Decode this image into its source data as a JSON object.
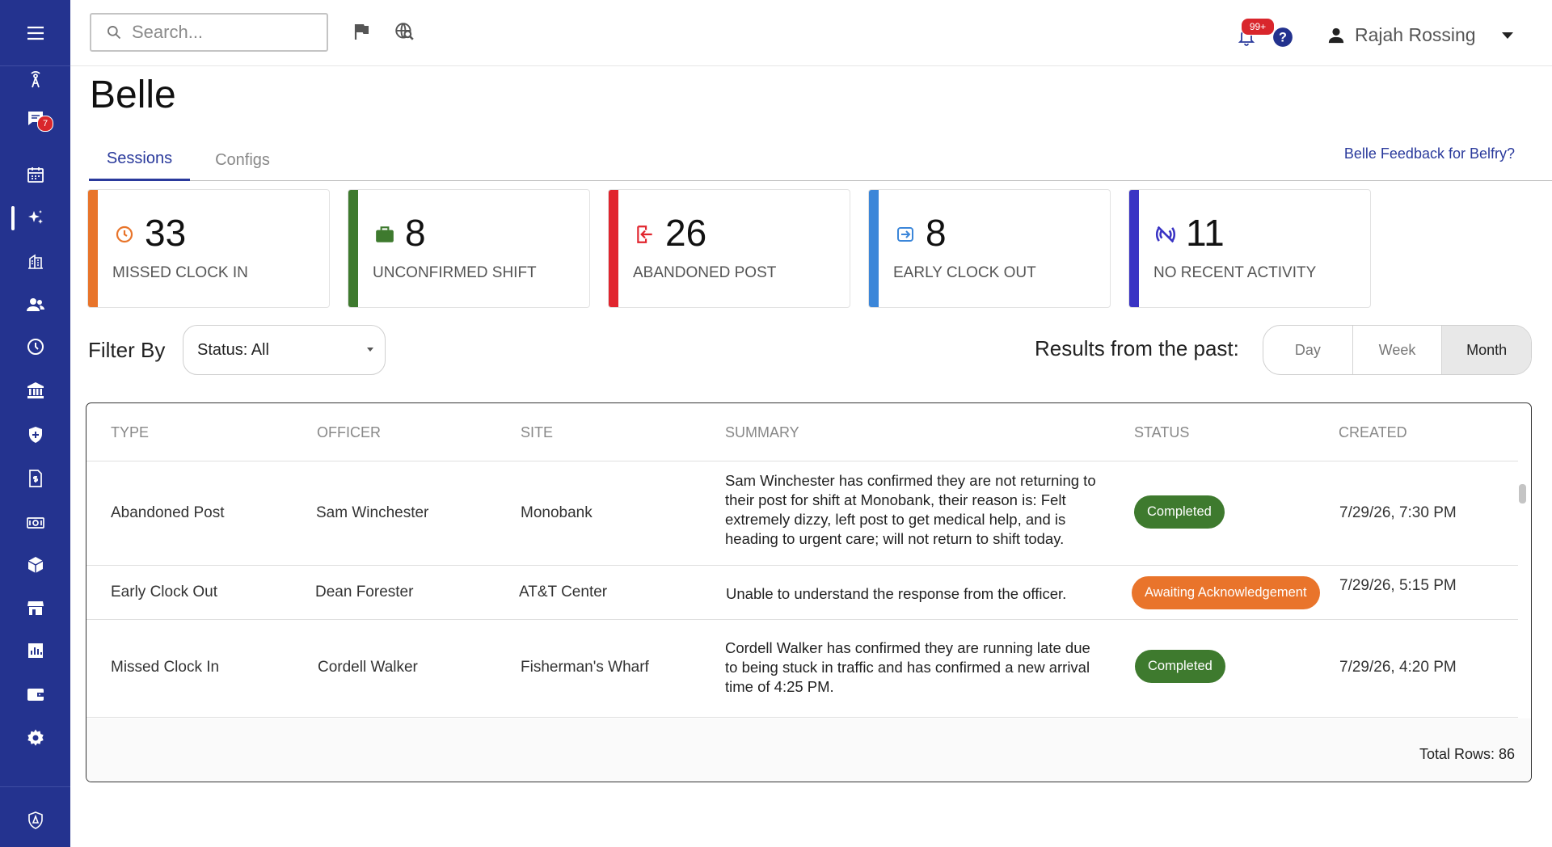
{
  "topbar": {
    "search_placeholder": "Search...",
    "notification_count": "99+",
    "user_name": "Rajah Rossing"
  },
  "sidebar": {
    "messages_badge": "7"
  },
  "page": {
    "title": "Belle",
    "tabs": [
      "Sessions",
      "Configs"
    ],
    "active_tab": "Sessions",
    "feedback_link": "Belle Feedback for Belfry?"
  },
  "cards": [
    {
      "value": "33",
      "label": "MISSED CLOCK IN",
      "color": "#e8742a"
    },
    {
      "value": "8",
      "label": "UNCONFIRMED SHIFT",
      "color": "#3e7a2e"
    },
    {
      "value": "26",
      "label": "ABANDONED POST",
      "color": "#e1252e"
    },
    {
      "value": "8",
      "label": "EARLY CLOCK OUT",
      "color": "#3b86d9"
    },
    {
      "value": "11",
      "label": "NO RECENT ACTIVITY",
      "color": "#3a34c4"
    }
  ],
  "filter": {
    "label": "Filter By",
    "status_value": "Status: All",
    "results_label": "Results from the past:",
    "ranges": [
      "Day",
      "Week",
      "Month"
    ],
    "selected_range": "Month"
  },
  "table": {
    "headers": [
      "TYPE",
      "OFFICER",
      "SITE",
      "SUMMARY",
      "STATUS",
      "CREATED"
    ],
    "rows": [
      {
        "type": "Abandoned Post",
        "officer": "Sam Winchester",
        "site": "Monobank",
        "summary": "Sam Winchester has confirmed they are not returning to their post for shift at Monobank, their reason is: Felt extremely dizzy, left post to get medical help, and is heading to urgent care; will not return to shift today.",
        "status": "Completed",
        "created": "7/29/26, 7:30 PM"
      },
      {
        "type": "Early Clock Out",
        "officer": "Dean Forester",
        "site": "AT&T Center",
        "summary": "Unable to understand the response from the officer.",
        "status": "Awaiting Acknowledgement",
        "created": "7/29/26, 5:15 PM"
      },
      {
        "type": "Missed Clock In",
        "officer": "Cordell Walker",
        "site": "Fisherman's Wharf",
        "summary": "Cordell Walker has confirmed they are running late due to being stuck in traffic and has confirmed a new arrival time of 4:25 PM.",
        "status": "Completed",
        "created": "7/29/26, 4:20 PM"
      }
    ],
    "total_rows": "Total Rows: 86"
  },
  "colors": {
    "sidebar": "#24338f",
    "completed": "#3e7a2e",
    "awaiting": "#e9742b",
    "accent": "#2a3a9c"
  }
}
